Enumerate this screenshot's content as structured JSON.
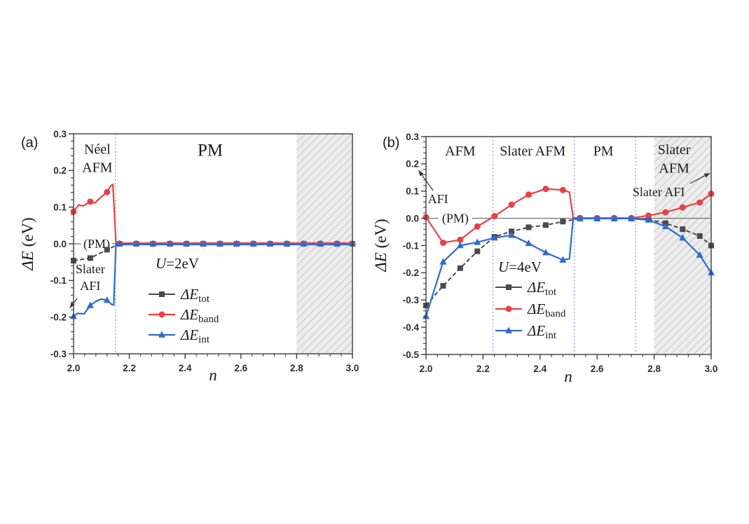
{
  "chart_data": [
    {
      "type": "line",
      "panel_label": "(a)",
      "xlabel": "n",
      "ylabel_italic": "ΔE",
      "ylabel_rest": " (eV)",
      "condition": {
        "italic": "U",
        "rest": "=2eV"
      },
      "xlim": [
        2.0,
        3.0
      ],
      "ylim": [
        -0.3,
        0.3
      ],
      "xticks": [
        2.0,
        2.2,
        2.4,
        2.6,
        2.8,
        3.0
      ],
      "yticks": [
        0.3,
        0.2,
        0.1,
        0.0,
        -0.1,
        -0.2,
        -0.3
      ],
      "x_minor_step": 0.04,
      "y_minor_step": 0.02,
      "separators": [
        2.15
      ],
      "hatch_region": [
        2.8,
        3.0
      ],
      "zero_segments": [
        [
          2.0,
          2.027
        ],
        [
          2.139,
          2.158
        ]
      ],
      "regions": [
        {
          "lines": [
            "Néel",
            "AFM"
          ],
          "x": 2.085,
          "y": 0.246,
          "size": 20
        },
        {
          "lines": [
            "PM"
          ],
          "x": 2.49,
          "y": 0.24,
          "size": 25
        }
      ],
      "annotations": [
        {
          "text_lines": [
            "(PM)"
          ],
          "x": 2.083,
          "y": 0.0,
          "size": 18,
          "valign": "middle"
        },
        {
          "text_lines": [
            "Slater",
            "AFI"
          ],
          "x": 2.06,
          "y": -0.08,
          "size": 18,
          "arrow": {
            "x1": 2.013,
            "y1": -0.149,
            "x2": 1.986,
            "y2": -0.175
          }
        }
      ],
      "legend_items": [
        {
          "main": "ΔE",
          "sub": "tot"
        },
        {
          "main": "ΔE",
          "sub": "band"
        },
        {
          "main": "ΔE",
          "sub": "int"
        }
      ],
      "series": [
        {
          "name": "ΔE_tot",
          "marker": "square",
          "color": "#4a4a4a",
          "dash": "6 3.5",
          "width": 2,
          "x": [
            2.0,
            2.06,
            2.12,
            2.165,
            2.225,
            2.285,
            2.345,
            2.405,
            2.465,
            2.525,
            2.585,
            2.645,
            2.705,
            2.765,
            2.825,
            2.885,
            2.945,
            3.0
          ],
          "y": [
            -0.046,
            -0.039,
            -0.016,
            0,
            0,
            0,
            0,
            0,
            0,
            0,
            0,
            0,
            0,
            0,
            0,
            0,
            0,
            0
          ]
        },
        {
          "name": "ΔE_band",
          "marker": "circle",
          "color": "#e84045",
          "width": 2.2,
          "x": [
            2.0,
            2.06,
            2.12,
            2.165,
            2.225,
            2.285,
            2.345,
            2.405,
            2.465,
            2.525,
            2.585,
            2.645,
            2.705,
            2.765,
            2.825,
            2.885,
            2.945,
            3.0
          ],
          "y": [
            0.088,
            0.115,
            0.141,
            0,
            0,
            0,
            0,
            0,
            0,
            0,
            0,
            0,
            0,
            0,
            0,
            0,
            0,
            0
          ],
          "line_x": [
            2.0,
            2.018,
            2.034,
            2.06,
            2.076,
            2.095,
            2.12,
            2.133,
            2.141,
            2.152,
            3.0
          ],
          "line_y": [
            0.088,
            0.106,
            0.103,
            0.115,
            0.111,
            0.125,
            0.141,
            0.158,
            0.162,
            0.002,
            0.002
          ]
        },
        {
          "name": "ΔE_int",
          "marker": "triangle",
          "color": "#2c6bd2",
          "width": 2.2,
          "x": [
            2.0,
            2.06,
            2.12,
            2.165,
            2.225,
            2.285,
            2.345,
            2.405,
            2.465,
            2.525,
            2.585,
            2.645,
            2.705,
            2.765,
            2.825,
            2.885,
            2.945,
            3.0
          ],
          "y": [
            -0.198,
            -0.168,
            -0.154,
            0,
            0,
            0,
            0,
            0,
            0,
            0,
            0,
            0,
            0,
            0,
            0,
            0,
            0,
            0
          ],
          "line_x": [
            2.0,
            2.014,
            2.038,
            2.06,
            2.08,
            2.1,
            2.12,
            2.136,
            2.144,
            2.152,
            3.0
          ],
          "line_y": [
            -0.198,
            -0.19,
            -0.191,
            -0.168,
            -0.157,
            -0.151,
            -0.154,
            -0.165,
            -0.167,
            -0.002,
            -0.002
          ]
        }
      ]
    },
    {
      "type": "line",
      "panel_label": "(b)",
      "xlabel": "n",
      "ylabel_italic": "ΔE",
      "ylabel_rest": " (eV)",
      "condition": {
        "italic": "U",
        "rest": "=4eV"
      },
      "xlim": [
        2.0,
        3.0
      ],
      "ylim": [
        -0.5,
        0.3
      ],
      "xticks": [
        2.0,
        2.2,
        2.4,
        2.6,
        2.8,
        3.0
      ],
      "yticks": [
        0.3,
        0.2,
        0.1,
        0.0,
        -0.1,
        -0.2,
        -0.3,
        -0.4,
        -0.5
      ],
      "x_minor_step": 0.04,
      "y_minor_step": 0.02,
      "separators": [
        2.235,
        2.52,
        2.735
      ],
      "hatch_region": [
        2.8,
        3.0
      ],
      "zero_segments": [
        [
          2.0,
          2.044
        ],
        [
          2.162,
          3.0
        ]
      ],
      "regions": [
        {
          "lines": [
            "AFM"
          ],
          "x": 2.12,
          "y": 0.23,
          "size": 20
        },
        {
          "lines": [
            "Slater AFM"
          ],
          "x": 2.374,
          "y": 0.23,
          "size": 20
        },
        {
          "lines": [
            "PM"
          ],
          "x": 2.622,
          "y": 0.23,
          "size": 20
        },
        {
          "lines": [
            "Slater",
            "AFM"
          ],
          "x": 2.87,
          "y": 0.236,
          "size": 20
        }
      ],
      "annotations": [
        {
          "text_lines": [
            "AFI"
          ],
          "x": 2.042,
          "y": 0.056,
          "size": 18,
          "arrow": {
            "x1": 2.025,
            "y1": 0.102,
            "x2": 1.974,
            "y2": 0.176
          }
        },
        {
          "text_lines": [
            "(PM)"
          ],
          "x": 2.103,
          "y": 0.0,
          "size": 18,
          "valign": "middle"
        },
        {
          "text_lines": [
            "Slater AFI"
          ],
          "x": 2.816,
          "y": 0.081,
          "size": 18,
          "arrow": {
            "x1": 2.926,
            "y1": 0.128,
            "x2": 2.996,
            "y2": 0.166
          }
        }
      ],
      "legend_items": [
        {
          "main": "ΔE",
          "sub": "tot"
        },
        {
          "main": "ΔE",
          "sub": "band"
        },
        {
          "main": "ΔE",
          "sub": "int"
        }
      ],
      "series": [
        {
          "name": "ΔE_tot",
          "marker": "square",
          "color": "#4a4a4a",
          "dash": "6 3.5",
          "width": 2,
          "x": [
            2.0,
            2.06,
            2.12,
            2.18,
            2.24,
            2.3,
            2.36,
            2.42,
            2.48,
            2.54,
            2.6,
            2.66,
            2.72,
            2.78,
            2.84,
            2.9,
            2.96,
            3.0
          ],
          "y": [
            -0.32,
            -0.248,
            -0.183,
            -0.121,
            -0.068,
            -0.048,
            -0.033,
            -0.025,
            -0.012,
            -0.001,
            -0.001,
            -0.001,
            -0.001,
            -0.004,
            -0.018,
            -0.04,
            -0.065,
            -0.1
          ]
        },
        {
          "name": "ΔE_band",
          "marker": "circle",
          "color": "#e84045",
          "width": 2.2,
          "x": [
            2.0,
            2.06,
            2.12,
            2.18,
            2.24,
            2.3,
            2.36,
            2.42,
            2.48,
            2.54,
            2.6,
            2.66,
            2.72,
            2.78,
            2.84,
            2.9,
            2.96,
            3.0
          ],
          "y": [
            0.004,
            -0.09,
            -0.079,
            -0.03,
            0.008,
            0.05,
            0.087,
            0.108,
            0.104,
            0.001,
            0.001,
            0.001,
            0.001,
            0.01,
            0.022,
            0.04,
            0.058,
            0.09
          ],
          "line_x": [
            2.0,
            2.06,
            2.12,
            2.18,
            2.24,
            2.3,
            2.36,
            2.42,
            2.48,
            2.503,
            2.516,
            2.54,
            2.6,
            2.66,
            2.72,
            2.78,
            2.84,
            2.9,
            2.96,
            3.0
          ],
          "line_y": [
            0.004,
            -0.09,
            -0.079,
            -0.03,
            0.008,
            0.05,
            0.087,
            0.108,
            0.104,
            0.096,
            0.002,
            0.001,
            0.001,
            0.001,
            0.001,
            0.01,
            0.022,
            0.04,
            0.058,
            0.09
          ]
        },
        {
          "name": "ΔE_int",
          "marker": "triangle",
          "color": "#2c6bd2",
          "width": 2.2,
          "x": [
            2.0,
            2.06,
            2.12,
            2.18,
            2.24,
            2.3,
            2.36,
            2.42,
            2.48,
            2.54,
            2.6,
            2.66,
            2.72,
            2.78,
            2.84,
            2.9,
            2.96,
            3.0
          ],
          "y": [
            -0.36,
            -0.16,
            -0.1,
            -0.088,
            -0.072,
            -0.062,
            -0.092,
            -0.126,
            -0.153,
            -0.001,
            -0.001,
            -0.001,
            -0.001,
            -0.006,
            -0.03,
            -0.072,
            -0.135,
            -0.2
          ],
          "line_x": [
            2.0,
            2.06,
            2.12,
            2.18,
            2.24,
            2.3,
            2.36,
            2.42,
            2.48,
            2.503,
            2.516,
            2.54,
            2.6,
            2.66,
            2.72,
            2.78,
            2.84,
            2.9,
            2.96,
            3.0
          ],
          "line_y": [
            -0.36,
            -0.16,
            -0.1,
            -0.088,
            -0.072,
            -0.062,
            -0.092,
            -0.126,
            -0.153,
            -0.149,
            -0.002,
            -0.001,
            -0.001,
            -0.001,
            -0.001,
            -0.006,
            -0.03,
            -0.072,
            -0.135,
            -0.2
          ]
        }
      ]
    }
  ],
  "style": {
    "frame_color": "#3c3c3c",
    "tick_label_color": "#2e2e2e",
    "text_color": "#1b1b1b",
    "separator_color": "#9090f2",
    "zero_line_color": "#555555",
    "hatch_bg": "#ededed",
    "hatch_line": "#c6c6c6",
    "arrow_color": "#333333"
  }
}
